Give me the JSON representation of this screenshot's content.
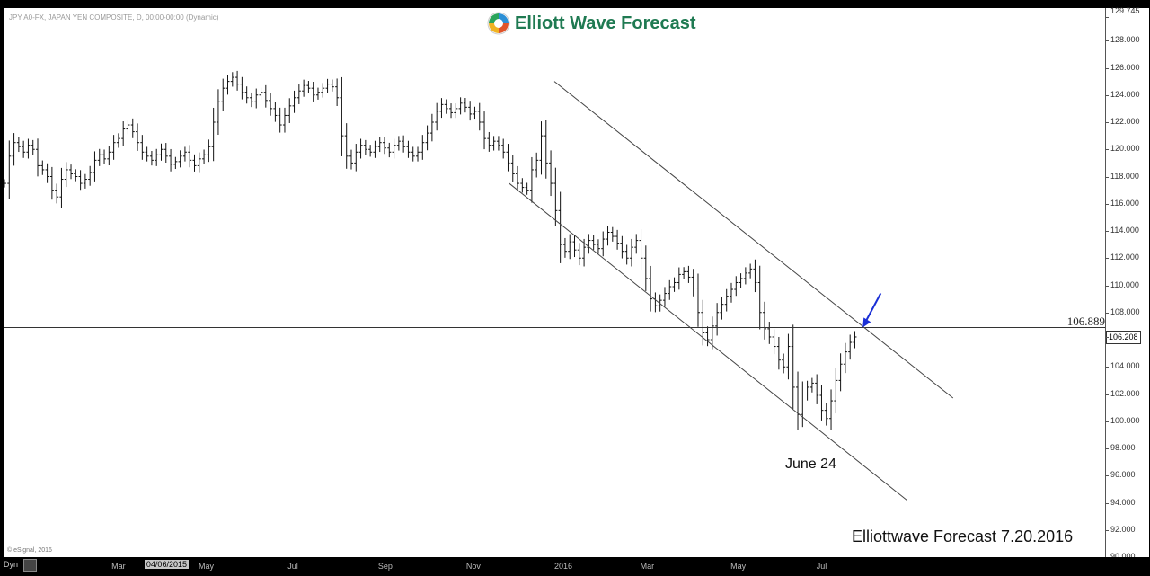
{
  "chart_data": {
    "type": "bar",
    "style": "ohlc-price-bars",
    "instrument": "JPY A0-FX, JAPAN YEN COMPOSITE, D, 00:00-00:00 (Dynamic)",
    "brand": "Elliott Wave Forecast",
    "watermark": "Elliottwave Forecast 7.20.2016",
    "copyright": "© eSignal, 2016",
    "y_ticks": [
      "129.745",
      "128.000",
      "126.000",
      "124.000",
      "122.000",
      "120.000",
      "118.000",
      "116.000",
      "114.000",
      "112.000",
      "110.000",
      "108.000",
      "106.208",
      "104.000",
      "102.000",
      "100.000",
      "98.000",
      "96.000",
      "94.000",
      "92.000",
      "90.000"
    ],
    "ylim": [
      90,
      130
    ],
    "x_ticks": [
      "Mar",
      "04/06/2015",
      "May",
      "Jul",
      "Sep",
      "Nov",
      "2016",
      "Mar",
      "May",
      "Jul"
    ],
    "horizontal_level": 106.889,
    "horizontal_level_label": "106.889",
    "last_price_label": "106.208",
    "annotation": "June 24",
    "arrow_color": "#1a2fd6",
    "logo_color": "#1f7a52",
    "series": [
      {
        "values": [
          117.5,
          119.5,
          120.5,
          120.2,
          119.8,
          120.3,
          120.0,
          118.8,
          118.5,
          118.0,
          117.0,
          116.5,
          117.8,
          118.5,
          118.2,
          118.0,
          117.5,
          117.8,
          118.3,
          119.2,
          119.6,
          119.3,
          119.8,
          120.5,
          120.8,
          121.5,
          121.8,
          121.3,
          120.5,
          119.8,
          119.5,
          119.2,
          119.6,
          120.0,
          119.5,
          118.9,
          119.1,
          119.5,
          119.8,
          119.2,
          118.8,
          119.3,
          119.6,
          120.2,
          122.0,
          123.5,
          124.5,
          125.0,
          125.3,
          124.8,
          124.2,
          123.8,
          123.5,
          124.0,
          124.2,
          123.6,
          123.0,
          122.5,
          121.8,
          122.5,
          123.2,
          123.8,
          124.3,
          124.7,
          124.5,
          124.0,
          124.2,
          124.5,
          124.8,
          124.6,
          123.8,
          121.0,
          119.5,
          119.0,
          119.8,
          120.3,
          120.0,
          119.8,
          120.2,
          120.5,
          120.1,
          119.8,
          120.3,
          120.6,
          120.2,
          119.8,
          119.5,
          119.8,
          120.5,
          121.2,
          122.0,
          122.8,
          123.3,
          123.0,
          122.7,
          123.0,
          123.4,
          123.1,
          122.6,
          122.8,
          122.0,
          120.8,
          120.3,
          120.6,
          120.3,
          119.8,
          119.0,
          118.2,
          117.5,
          117.2,
          117.0,
          118.5,
          119.2,
          121.0,
          119.0,
          117.5,
          115.5,
          113.0,
          112.5,
          113.2,
          112.6,
          112.0,
          112.8,
          113.3,
          113.0,
          112.7,
          113.4,
          113.9,
          113.6,
          113.1,
          112.5,
          112.0,
          112.8,
          113.3,
          112.0,
          110.5,
          109.0,
          108.5,
          108.9,
          109.4,
          109.9,
          110.2,
          110.8,
          111.0,
          110.6,
          109.8,
          108.0,
          106.5,
          106.0,
          107.0,
          108.0,
          108.6,
          109.2,
          109.7,
          110.2,
          110.5,
          110.9,
          111.2,
          110.2,
          108.0,
          106.8,
          106.2,
          105.5,
          104.5,
          104.0,
          105.5,
          102.5,
          100.5,
          102.0,
          102.5,
          102.8,
          101.9,
          100.8,
          100.2,
          101.5,
          103.0,
          104.2,
          105.1,
          105.8,
          106.2
        ],
        "x_fraction_range": [
          0.0,
          0.772
        ]
      }
    ],
    "channel_upper": [
      [
        0.5,
        125.0
      ],
      [
        0.862,
        101.7
      ]
    ],
    "channel_lower": [
      [
        0.459,
        117.5
      ],
      [
        0.82,
        94.2
      ]
    ]
  },
  "ui": {
    "dyn_label": "Dyn",
    "date_box": "04/06/2015"
  }
}
